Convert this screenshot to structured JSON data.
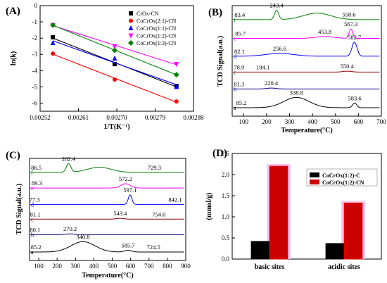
{
  "chart_data": [
    {
      "panel": "(A)",
      "type": "scatter",
      "xlabel": "1/T(K⁻¹)",
      "ylabel": "ln(k)",
      "xlim": [
        0.00252,
        0.00288
      ],
      "ylim": [
        -6.5,
        0.0
      ],
      "xticks": [
        "0.00252",
        "0.00261",
        "0.00270",
        "0.00279",
        "0.00288"
      ],
      "yticks": [
        "0",
        "-1",
        "-2",
        "-3",
        "-4",
        "-5",
        "-6"
      ],
      "grid": false,
      "legend_position": "top-right",
      "series": [
        {
          "name": "CrOx-CN",
          "color": "#000000",
          "marker": "square",
          "x": [
            0.00255,
            0.002695,
            0.00284
          ],
          "y": [
            -1.95,
            -3.6,
            -4.95
          ]
        },
        {
          "name": "CoCrOx(2:1)-CN",
          "color": "#ff0000",
          "marker": "circle",
          "x": [
            0.00255,
            0.002695,
            0.00284
          ],
          "y": [
            -2.95,
            -4.55,
            -5.9
          ]
        },
        {
          "name": "CoCrOx(1:1)-CN",
          "color": "#0000ff",
          "marker": "triangle-up",
          "x": [
            0.00255,
            0.002695,
            0.00284
          ],
          "y": [
            -2.3,
            -3.25,
            -5.0
          ]
        },
        {
          "name": "CoCrOx(1:2)-CN",
          "color": "#ff00ff",
          "marker": "triangle-down",
          "x": [
            0.00255,
            0.002695,
            0.00284
          ],
          "y": [
            -1.2,
            -2.5,
            -3.6
          ]
        },
        {
          "name": "CoCrOx(1:3)-CN",
          "color": "#008000",
          "marker": "diamond",
          "x": [
            0.00255,
            0.002695,
            0.00284
          ],
          "y": [
            -1.2,
            -2.75,
            -4.25
          ]
        }
      ]
    },
    {
      "panel": "(B)",
      "type": "line",
      "xlabel": "Temperature(°C)",
      "ylabel": "TCD Signal(a.u.)",
      "xlim": [
        50,
        700
      ],
      "xticks": [
        "100",
        "200",
        "300",
        "400",
        "500",
        "600",
        "700"
      ],
      "traces": [
        {
          "letter": "a",
          "color": "#000000",
          "baseline": 0.0,
          "peaks": [
            {
              "x": 90,
              "h": 0.0,
              "label": "85.2"
            },
            {
              "x": 330,
              "h": 0.55,
              "w": 110,
              "label": "338.8"
            },
            {
              "x": 583.6,
              "h": 0.25,
              "w": 18,
              "label": "583.6"
            }
          ]
        },
        {
          "letter": "b",
          "color": "#000080",
          "baseline": 1.0,
          "peaks": [
            {
              "x": 80,
              "h": 0.0,
              "label": "81.3"
            },
            {
              "x": 220.4,
              "h": 0.05,
              "w": 40,
              "label": "220.4"
            }
          ]
        },
        {
          "letter": "c",
          "color": "#8b0000",
          "baseline": 1.9,
          "peaks": [
            {
              "x": 80,
              "h": 0.0,
              "label": "78.9"
            },
            {
              "x": 184.1,
              "h": 0.0,
              "w": 40,
              "label": "184.1"
            },
            {
              "x": 550.4,
              "h": 0.05,
              "w": 40,
              "label": "550.4"
            }
          ]
        },
        {
          "letter": "d",
          "color": "#0000ff",
          "baseline": 2.75,
          "peaks": [
            {
              "x": 82,
              "h": 0.0,
              "label": "82.1"
            },
            {
              "x": 256.6,
              "h": 0.15,
              "w": 120,
              "label": "256.6"
            },
            {
              "x": 582.7,
              "h": 0.75,
              "w": 22,
              "label": "582.7"
            }
          ]
        },
        {
          "letter": "e",
          "color": "#ff00ff",
          "baseline": 3.7,
          "peaks": [
            {
              "x": 86,
              "h": 0.0,
              "label": "85.7"
            },
            {
              "x": 453.8,
              "h": 0.1,
              "w": 80,
              "label": "453.8"
            },
            {
              "x": 567.3,
              "h": 0.5,
              "w": 16,
              "label": "567.3"
            }
          ]
        },
        {
          "letter": "f",
          "color": "#008000",
          "baseline": 4.7,
          "peaks": [
            {
              "x": 83,
              "h": 0.0,
              "label": "83.4"
            },
            {
              "x": 243.4,
              "h": 0.5,
              "w": 18,
              "label": "243.4"
            },
            {
              "x": 420,
              "h": 0.35,
              "w": 120
            },
            {
              "x": 558.6,
              "h": 0.0,
              "w": 20,
              "label": "558.6"
            }
          ]
        }
      ]
    },
    {
      "panel": "(C)",
      "type": "line",
      "xlabel": "Temperature(°C)",
      "ylabel": "TCD Signal(a.u.)",
      "xlim": [
        50,
        900
      ],
      "xticks": [
        "100",
        "200",
        "300",
        "400",
        "500",
        "600",
        "700",
        "800",
        "900"
      ],
      "traces": [
        {
          "letter": "a",
          "color": "#000000",
          "baseline": 0.0,
          "peaks": [
            {
              "x": 85.2,
              "h": 0.0,
              "label": "85.2"
            },
            {
              "x": 340.8,
              "h": 0.6,
              "w": 130,
              "label": "340.8"
            },
            {
              "x": 585.7,
              "h": 0.1,
              "w": 40,
              "label": "585.7"
            },
            {
              "x": 724.5,
              "h": 0.0,
              "w": 40,
              "label": "724.5"
            }
          ]
        },
        {
          "letter": "b",
          "color": "#000080",
          "baseline": 1.0,
          "peaks": [
            {
              "x": 80.1,
              "h": 0.0,
              "label": "80.1"
            },
            {
              "x": 270.2,
              "h": 0.05,
              "w": 50,
              "label": "270.2"
            }
          ]
        },
        {
          "letter": "c",
          "color": "#8b0000",
          "baseline": 1.9,
          "peaks": [
            {
              "x": 81.1,
              "h": 0.0,
              "label": "81.1"
            },
            {
              "x": 543.4,
              "h": 0.05,
              "w": 40,
              "label": "543.4"
            },
            {
              "x": 754.0,
              "h": 0.0,
              "w": 40,
              "label": "754.0"
            }
          ]
        },
        {
          "letter": "d",
          "color": "#0000ff",
          "baseline": 2.75,
          "peaks": [
            {
              "x": 77.3,
              "h": 0.0,
              "label": "77.3"
            },
            {
              "x": 597.1,
              "h": 0.55,
              "w": 20,
              "label": "597.1"
            },
            {
              "x": 842.1,
              "h": 0.0,
              "w": 40,
              "label": "842.1"
            }
          ]
        },
        {
          "letter": "e",
          "color": "#ff00ff",
          "baseline": 3.7,
          "peaks": [
            {
              "x": 89.3,
              "h": 0.0,
              "label": "89.3"
            },
            {
              "x": 572.2,
              "h": 0.25,
              "w": 50,
              "label": "572.2"
            }
          ]
        },
        {
          "letter": "f",
          "color": "#008000",
          "baseline": 4.6,
          "peaks": [
            {
              "x": 86.5,
              "h": 0.0,
              "label": "86.5"
            },
            {
              "x": 262.4,
              "h": 0.5,
              "w": 25,
              "label": "262.4"
            },
            {
              "x": 430,
              "h": 0.3,
              "w": 130
            },
            {
              "x": 729.3,
              "h": 0.0,
              "w": 40,
              "label": "729.3"
            }
          ]
        }
      ]
    },
    {
      "panel": "(D)",
      "type": "bar",
      "ylabel": "(mmol/g)",
      "ylim": [
        0.0,
        2.5
      ],
      "yticks": [
        "0.0",
        "0.5",
        "1.0",
        "1.5",
        "2.0",
        "2.5"
      ],
      "categories": [
        "basic sites",
        "acidic sites"
      ],
      "legend_position": "top-right",
      "series": [
        {
          "name": "CoCrOx(1:2)-C",
          "color": "#000000",
          "values": [
            0.42,
            0.37
          ]
        },
        {
          "name": "CoCrOx(1:2)-CN",
          "color": "#cc0000",
          "values": [
            2.2,
            1.33
          ]
        }
      ]
    }
  ]
}
